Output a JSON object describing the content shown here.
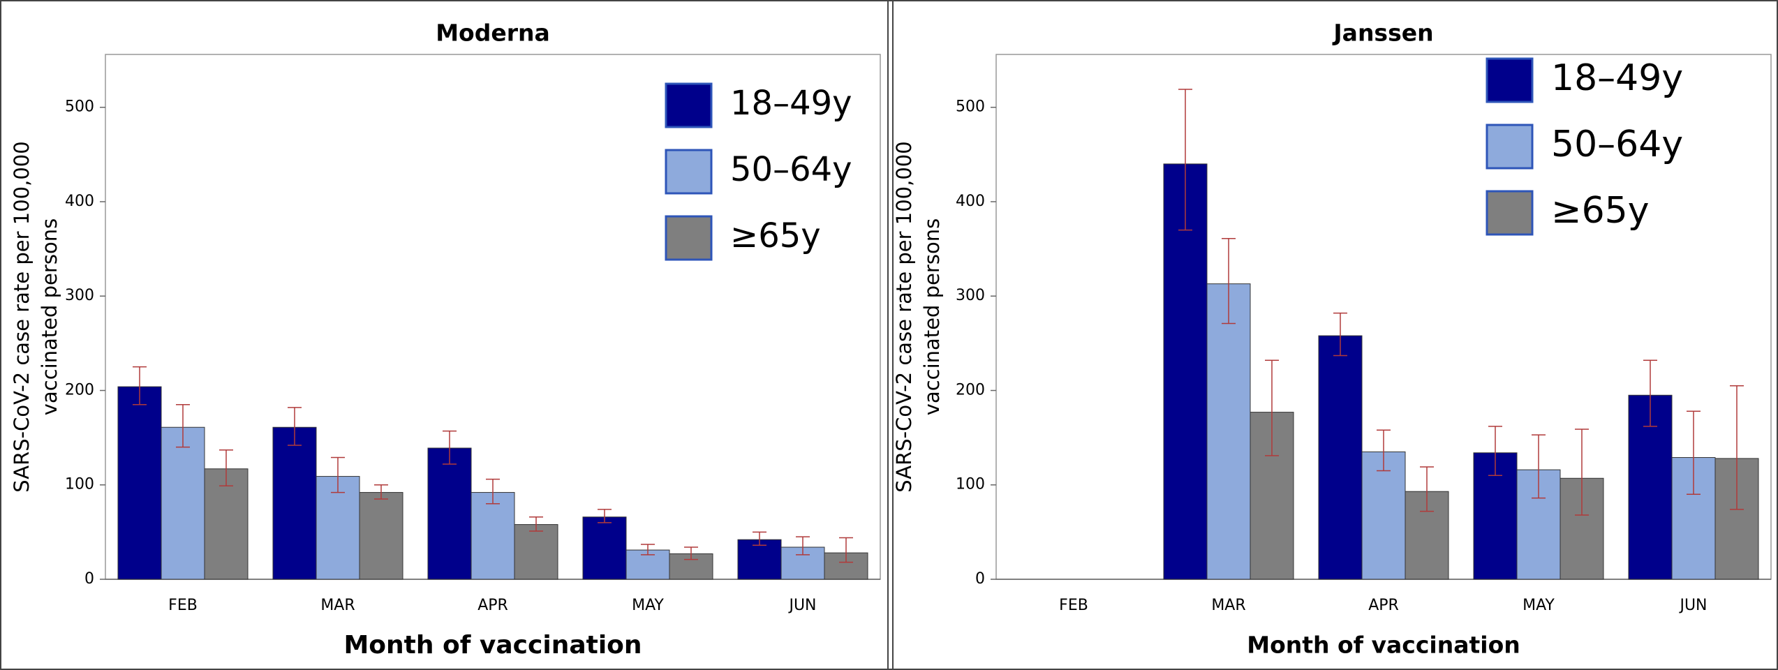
{
  "chart_data": [
    {
      "type": "bar",
      "title": "Moderna",
      "xlabel": "Month of vaccination",
      "ylabel": [
        "SARS-CoV-2 case rate per 100,000",
        "vaccinated persons"
      ],
      "categories": [
        "FEB",
        "MAR",
        "APR",
        "MAY",
        "JUN"
      ],
      "series": [
        {
          "name": "18–49y",
          "color": "#00008b",
          "values": [
            204,
            161,
            139,
            66,
            42
          ],
          "ci_low": [
            185,
            142,
            122,
            60,
            36
          ],
          "ci_high": [
            225,
            182,
            157,
            74,
            50
          ]
        },
        {
          "name": "50–64y",
          "color": "#8eaadc",
          "values": [
            161,
            109,
            92,
            31,
            34
          ],
          "ci_low": [
            140,
            92,
            80,
            26,
            26
          ],
          "ci_high": [
            185,
            129,
            106,
            37,
            45
          ]
        },
        {
          "name": "≥65y",
          "color": "#7f7f7f",
          "values": [
            117,
            92,
            58,
            27,
            28
          ],
          "ci_low": [
            99,
            85,
            51,
            21,
            18
          ],
          "ci_high": [
            137,
            100,
            66,
            34,
            44
          ]
        }
      ],
      "error_color": "#b03a3a",
      "ylim": [
        0,
        556
      ],
      "yticks": [
        0,
        100,
        200,
        300,
        400,
        500
      ],
      "legend": "upper right",
      "grid": false
    },
    {
      "type": "bar",
      "title": "Janssen",
      "xlabel": "Month of vaccination",
      "ylabel": [
        "SARS-CoV-2 case rate per 100,000",
        "vaccinated persons"
      ],
      "categories": [
        "FEB",
        "MAR",
        "APR",
        "MAY",
        "JUN"
      ],
      "series": [
        {
          "name": "18–49y",
          "color": "#00008b",
          "values": [
            null,
            440,
            258,
            134,
            195
          ],
          "ci_low": [
            null,
            370,
            237,
            110,
            162
          ],
          "ci_high": [
            null,
            519,
            282,
            162,
            232
          ]
        },
        {
          "name": "50–64y",
          "color": "#8eaadc",
          "values": [
            null,
            313,
            135,
            116,
            129
          ],
          "ci_low": [
            null,
            271,
            115,
            86,
            90
          ],
          "ci_high": [
            null,
            361,
            158,
            153,
            178
          ]
        },
        {
          "name": "≥65y",
          "color": "#7f7f7f",
          "values": [
            null,
            177,
            93,
            107,
            128
          ],
          "ci_low": [
            null,
            131,
            72,
            68,
            74
          ],
          "ci_high": [
            null,
            232,
            119,
            159,
            205
          ]
        }
      ],
      "error_color": "#b03a3a",
      "ylim": [
        0,
        556
      ],
      "yticks": [
        0,
        100,
        200,
        300,
        400,
        500
      ],
      "legend": "upper right",
      "grid": false
    }
  ]
}
